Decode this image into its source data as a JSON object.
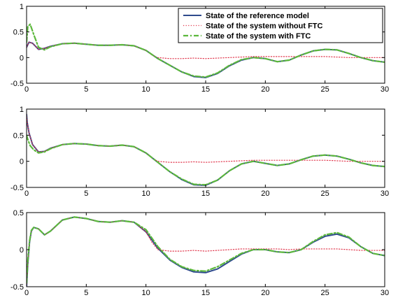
{
  "chart_data": [
    {
      "type": "line",
      "xlim": [
        0,
        30
      ],
      "ylim": [
        -0.5,
        1
      ],
      "xticks": [
        0,
        5,
        10,
        15,
        20,
        25,
        30
      ],
      "yticks": [
        -0.5,
        0,
        0.5,
        1
      ],
      "ytick_labels": [
        "-0.5",
        "0",
        "0.5",
        "1"
      ],
      "grid": false,
      "legend": {
        "placement": "top-right"
      },
      "series": [
        {
          "name": "State of the reference model",
          "color": "#2e4a8c",
          "style": "solid",
          "x": [
            0,
            0.2,
            0.5,
            1,
            1.5,
            2,
            3,
            4,
            5,
            6,
            7,
            8,
            9,
            10,
            11,
            12,
            13,
            14,
            15,
            16,
            17,
            18,
            19,
            20,
            21,
            22,
            23,
            24,
            25,
            26,
            27,
            28,
            29,
            30
          ],
          "y": [
            0.2,
            0.3,
            0.28,
            0.16,
            0.18,
            0.22,
            0.27,
            0.28,
            0.26,
            0.24,
            0.24,
            0.25,
            0.23,
            0.14,
            -0.02,
            -0.15,
            -0.28,
            -0.37,
            -0.39,
            -0.31,
            -0.16,
            -0.05,
            0,
            -0.02,
            -0.08,
            -0.05,
            0.05,
            0.13,
            0.16,
            0.15,
            0.08,
            0,
            -0.06,
            -0.09
          ]
        },
        {
          "name": "State of the system without FTC",
          "color": "#e0344a",
          "style": "dotted",
          "x": [
            0,
            0.2,
            0.5,
            1,
            1.5,
            2,
            3,
            4,
            5,
            6,
            7,
            8,
            9,
            10,
            10.5,
            11,
            12,
            13,
            14,
            15,
            16,
            17,
            18,
            19,
            20,
            21,
            22,
            23,
            24,
            25,
            26,
            27,
            28,
            29,
            30
          ],
          "y": [
            0.2,
            0.3,
            0.28,
            0.16,
            0.18,
            0.22,
            0.27,
            0.28,
            0.26,
            0.24,
            0.24,
            0.25,
            0.23,
            0.14,
            0.05,
            0,
            -0.02,
            -0.02,
            -0.01,
            -0.02,
            -0.01,
            0,
            0.01,
            0.02,
            0.02,
            0.02,
            0.02,
            0.02,
            0.02,
            0.02,
            0.01,
            0,
            0,
            0,
            0
          ]
        },
        {
          "name": "State of the system with FTC",
          "color": "#5cb83c",
          "style": "dashdot",
          "x": [
            0,
            0.1,
            0.3,
            0.6,
            1,
            1.5,
            2,
            3,
            4,
            5,
            6,
            7,
            8,
            9,
            10,
            11,
            12,
            13,
            14,
            15,
            16,
            17,
            18,
            19,
            20,
            21,
            22,
            23,
            24,
            25,
            26,
            27,
            28,
            29,
            30
          ],
          "y": [
            0.3,
            0.6,
            0.65,
            0.45,
            0.2,
            0.15,
            0.21,
            0.27,
            0.28,
            0.26,
            0.24,
            0.24,
            0.25,
            0.23,
            0.14,
            -0.02,
            -0.15,
            -0.28,
            -0.36,
            -0.38,
            -0.3,
            -0.15,
            -0.04,
            0,
            -0.02,
            -0.08,
            -0.05,
            0.05,
            0.13,
            0.16,
            0.15,
            0.08,
            0,
            -0.06,
            -0.09
          ]
        }
      ]
    },
    {
      "type": "line",
      "xlim": [
        0,
        30
      ],
      "ylim": [
        -0.5,
        1
      ],
      "xticks": [
        0,
        5,
        10,
        15,
        20,
        25,
        30
      ],
      "yticks": [
        -0.5,
        0,
        0.5,
        1
      ],
      "ytick_labels": [
        "-0.5",
        "0",
        "0.5",
        "1"
      ],
      "grid": false,
      "series": [
        {
          "name": "State of the reference model",
          "color": "#2e4a8c",
          "style": "solid",
          "x": [
            0,
            0.05,
            0.2,
            0.5,
            1,
            1.5,
            2,
            3,
            4,
            5,
            6,
            7,
            8,
            9,
            10,
            11,
            12,
            13,
            14,
            15,
            16,
            17,
            18,
            19,
            20,
            21,
            22,
            23,
            24,
            25,
            26,
            27,
            28,
            29,
            30
          ],
          "y": [
            0.9,
            0.75,
            0.55,
            0.32,
            0.18,
            0.19,
            0.25,
            0.32,
            0.34,
            0.33,
            0.3,
            0.29,
            0.31,
            0.28,
            0.16,
            -0.02,
            -0.2,
            -0.35,
            -0.45,
            -0.46,
            -0.36,
            -0.18,
            -0.05,
            0,
            -0.04,
            -0.08,
            -0.05,
            0.03,
            0.1,
            0.12,
            0.1,
            0.04,
            -0.03,
            -0.08,
            -0.1
          ]
        },
        {
          "name": "State of the system without FTC",
          "color": "#e0344a",
          "style": "dotted",
          "x": [
            0,
            0.05,
            0.2,
            0.5,
            1,
            1.5,
            2,
            3,
            4,
            5,
            6,
            7,
            8,
            9,
            10,
            10.5,
            11,
            12,
            13,
            14,
            15,
            16,
            17,
            18,
            19,
            20,
            21,
            22,
            23,
            24,
            25,
            26,
            27,
            28,
            29,
            30
          ],
          "y": [
            0.9,
            0.75,
            0.55,
            0.32,
            0.18,
            0.19,
            0.25,
            0.32,
            0.34,
            0.33,
            0.3,
            0.29,
            0.31,
            0.28,
            0.16,
            0.06,
            0,
            -0.02,
            -0.02,
            -0.01,
            -0.02,
            -0.01,
            0,
            0.01,
            0.02,
            0.02,
            0.02,
            0.02,
            0.02,
            0.02,
            0.02,
            0.01,
            0,
            0,
            0,
            0
          ]
        },
        {
          "name": "State of the system with FTC",
          "color": "#5cb83c",
          "style": "dashdot",
          "x": [
            0,
            0.1,
            0.3,
            0.6,
            1,
            1.5,
            2,
            3,
            4,
            5,
            6,
            7,
            8,
            9,
            10,
            11,
            12,
            13,
            14,
            15,
            16,
            17,
            18,
            19,
            20,
            21,
            22,
            23,
            24,
            25,
            26,
            27,
            28,
            29,
            30
          ],
          "y": [
            0.5,
            0.42,
            0.3,
            0.22,
            0.16,
            0.18,
            0.24,
            0.32,
            0.34,
            0.33,
            0.3,
            0.29,
            0.31,
            0.28,
            0.16,
            -0.02,
            -0.2,
            -0.34,
            -0.44,
            -0.45,
            -0.36,
            -0.18,
            -0.05,
            0,
            -0.04,
            -0.08,
            -0.05,
            0.03,
            0.1,
            0.12,
            0.1,
            0.04,
            -0.03,
            -0.08,
            -0.1
          ]
        }
      ]
    },
    {
      "type": "line",
      "xlim": [
        0,
        30
      ],
      "ylim": [
        -0.5,
        0.5
      ],
      "xticks": [
        0,
        5,
        10,
        15,
        20,
        25,
        30
      ],
      "yticks": [
        -0.5,
        0,
        0.5
      ],
      "ytick_labels": [
        "-0.5",
        "0",
        "0.5"
      ],
      "grid": false,
      "series": [
        {
          "name": "State of the reference model",
          "color": "#2e4a8c",
          "style": "solid",
          "x": [
            0,
            0.1,
            0.25,
            0.4,
            0.6,
            1,
            1.5,
            2,
            3,
            4,
            5,
            6,
            7,
            8,
            9,
            10,
            11,
            12,
            13,
            14,
            15,
            16,
            17,
            18,
            19,
            20,
            21,
            22,
            23,
            24,
            25,
            26,
            27,
            28,
            29,
            30
          ],
          "y": [
            -0.5,
            -0.2,
            0.1,
            0.25,
            0.3,
            0.28,
            0.2,
            0.25,
            0.4,
            0.44,
            0.42,
            0.38,
            0.37,
            0.39,
            0.37,
            0.24,
            0.02,
            -0.14,
            -0.24,
            -0.3,
            -0.31,
            -0.26,
            -0.16,
            -0.06,
            0,
            0,
            -0.03,
            -0.04,
            0,
            0.1,
            0.18,
            0.21,
            0.16,
            0.04,
            -0.05,
            -0.08
          ]
        },
        {
          "name": "State of the system without FTC",
          "color": "#e0344a",
          "style": "dotted",
          "x": [
            0,
            0.1,
            0.25,
            0.4,
            0.6,
            1,
            1.5,
            2,
            3,
            4,
            5,
            6,
            7,
            8,
            9,
            10,
            10.5,
            11,
            12,
            13,
            14,
            15,
            16,
            17,
            18,
            19,
            20,
            21,
            22,
            23,
            24,
            25,
            26,
            27,
            28,
            29,
            30
          ],
          "y": [
            -0.5,
            -0.2,
            0.1,
            0.25,
            0.3,
            0.28,
            0.2,
            0.25,
            0.4,
            0.44,
            0.42,
            0.38,
            0.37,
            0.39,
            0.37,
            0.24,
            0.1,
            0,
            -0.02,
            -0.02,
            -0.01,
            -0.02,
            -0.01,
            0,
            0.01,
            0.01,
            0.01,
            0.01,
            0,
            0.01,
            0.01,
            0.01,
            0.01,
            0,
            -0.01,
            -0.01,
            -0.01
          ]
        },
        {
          "name": "State of the system with FTC",
          "color": "#5cb83c",
          "style": "dashdot",
          "x": [
            0,
            0.1,
            0.25,
            0.4,
            0.6,
            1,
            1.5,
            2,
            3,
            4,
            5,
            6,
            7,
            8,
            9,
            10,
            11,
            12,
            13,
            14,
            15,
            16,
            17,
            18,
            19,
            20,
            21,
            22,
            23,
            24,
            25,
            26,
            27,
            28,
            29,
            30
          ],
          "y": [
            -0.45,
            -0.15,
            0.12,
            0.26,
            0.3,
            0.28,
            0.2,
            0.25,
            0.4,
            0.44,
            0.42,
            0.38,
            0.37,
            0.39,
            0.37,
            0.27,
            0.04,
            -0.13,
            -0.23,
            -0.28,
            -0.29,
            -0.23,
            -0.14,
            -0.05,
            0,
            0,
            -0.03,
            -0.04,
            0,
            0.11,
            0.2,
            0.23,
            0.17,
            0.04,
            -0.05,
            -0.08
          ]
        }
      ]
    }
  ]
}
